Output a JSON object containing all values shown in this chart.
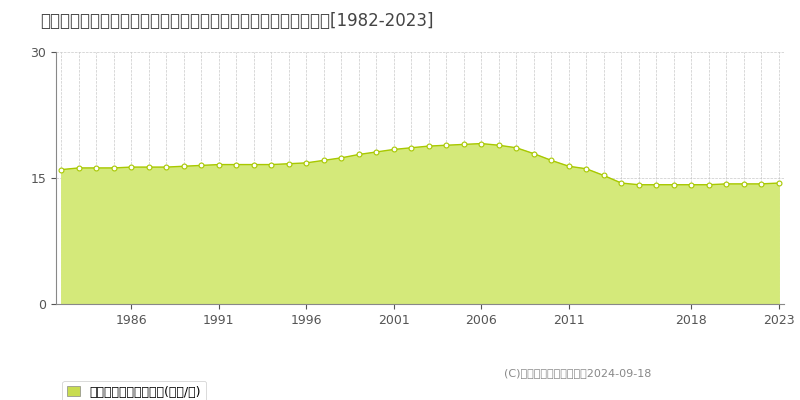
{
  "title": "青森県八戸市大字尻内町字表河原１５番１　公示地価　地価推移[1982-2023]",
  "years": [
    1982,
    1983,
    1984,
    1985,
    1986,
    1987,
    1988,
    1989,
    1990,
    1991,
    1992,
    1993,
    1994,
    1995,
    1996,
    1997,
    1998,
    1999,
    2000,
    2001,
    2002,
    2003,
    2004,
    2005,
    2006,
    2007,
    2008,
    2009,
    2010,
    2011,
    2012,
    2013,
    2014,
    2015,
    2016,
    2017,
    2018,
    2019,
    2020,
    2021,
    2022,
    2023
  ],
  "values": [
    16.0,
    16.2,
    16.2,
    16.2,
    16.3,
    16.3,
    16.3,
    16.4,
    16.5,
    16.6,
    16.6,
    16.6,
    16.6,
    16.7,
    16.8,
    17.1,
    17.4,
    17.8,
    18.1,
    18.4,
    18.6,
    18.8,
    18.9,
    19.0,
    19.1,
    18.9,
    18.6,
    17.9,
    17.1,
    16.4,
    16.1,
    15.3,
    14.4,
    14.2,
    14.2,
    14.2,
    14.2,
    14.2,
    14.3,
    14.3,
    14.3,
    14.4
  ],
  "fill_color": "#d4e97a",
  "line_color": "#a8c800",
  "marker_color": "#ffffff",
  "marker_edge_color": "#a8c800",
  "ylim": [
    0,
    30
  ],
  "yticks": [
    0,
    15,
    30
  ],
  "xlim_start": 1982,
  "xlim_end": 2023,
  "xticks": [
    1986,
    1991,
    1996,
    2001,
    2006,
    2011,
    2018,
    2023
  ],
  "grid_color": "#bbbbbb",
  "bg_color": "#ffffff",
  "legend_label": "公示地価　平均坪単価(万円/坪)",
  "legend_marker_color": "#c8dc50",
  "copyright_text": "(C)土地価格ドットコム　2024-09-18",
  "title_fontsize": 12,
  "axis_fontsize": 9,
  "legend_fontsize": 9
}
